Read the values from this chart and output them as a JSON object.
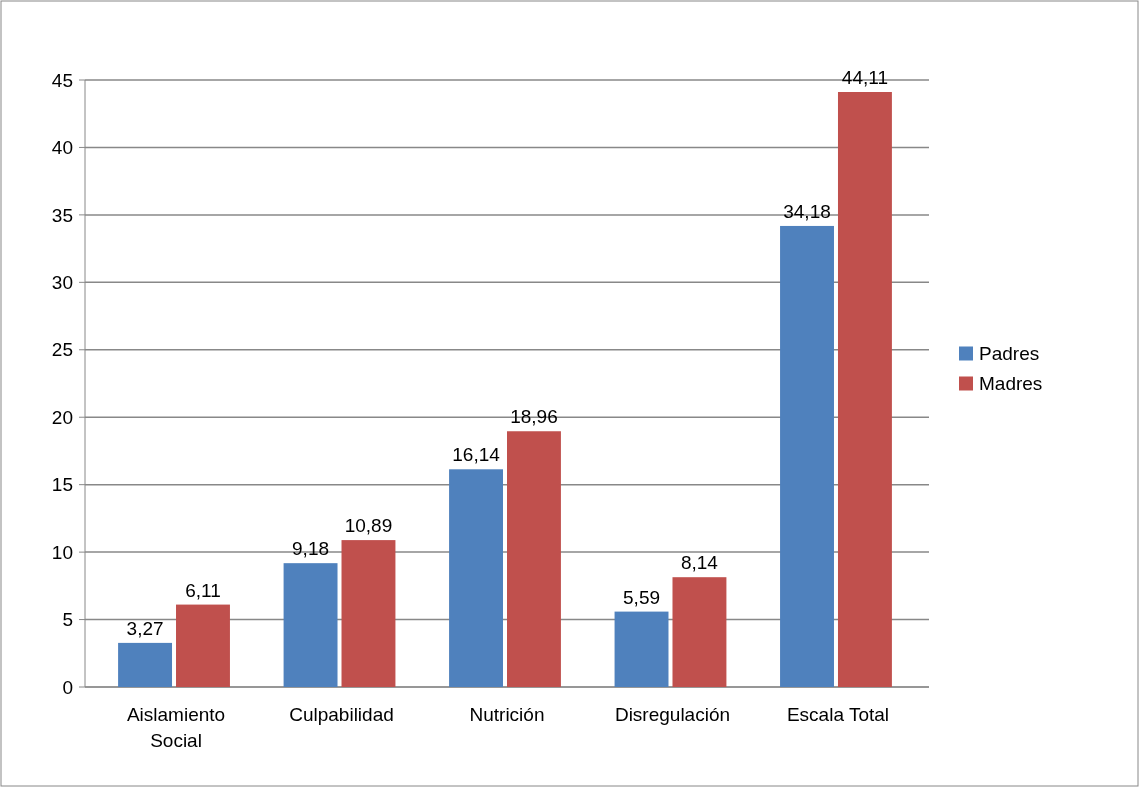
{
  "chart_data": {
    "type": "bar",
    "categories": [
      "Aislamiento Social",
      "Culpabilidad",
      "Nutrición",
      "Disregulación",
      "Escala Total"
    ],
    "series": [
      {
        "name": "Padres",
        "color": "#4f81bd",
        "values": [
          3.27,
          9.18,
          16.14,
          5.59,
          34.18
        ],
        "value_labels": [
          "3,27",
          "9,18",
          "16,14",
          "5,59",
          "34,18"
        ]
      },
      {
        "name": "Madres",
        "color": "#c0504d",
        "values": [
          6.11,
          10.89,
          18.96,
          8.14,
          44.11
        ],
        "value_labels": [
          "6,11",
          "10,89",
          "18,96",
          "8,14",
          "44,11"
        ]
      }
    ],
    "ylim": [
      0,
      45
    ],
    "yticks": [
      0,
      5,
      10,
      15,
      20,
      25,
      30,
      35,
      40,
      45
    ],
    "grid": "y",
    "legend": "right"
  }
}
